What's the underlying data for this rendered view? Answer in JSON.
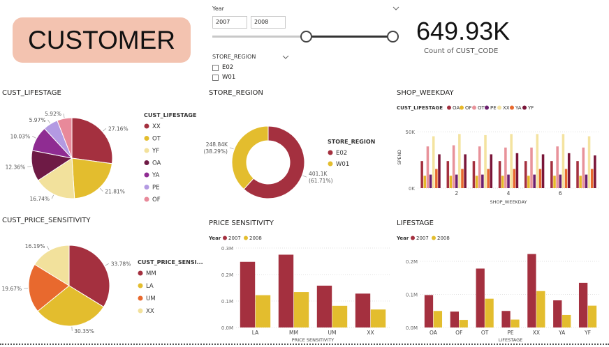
{
  "header": {
    "title": "CUSTOMER"
  },
  "year_slicer": {
    "label": "Year",
    "from": "2007",
    "to": "2008",
    "low": 0,
    "high": 1
  },
  "kpi": {
    "value": "649.93K",
    "label": "Count of CUST_CODE"
  },
  "store_slicer": {
    "label": "STORE_REGION",
    "options": [
      "E02",
      "W01"
    ]
  },
  "colors": {
    "OA": "#a4303f",
    "OF": "#e6b829",
    "OT": "#e8929a",
    "PE": "#6b1f6e",
    "XX": "#f4e3a0",
    "YA": "#e8692e",
    "YF": "#7a1538",
    "y2007": "#a4303f",
    "y2008": "#e3bd2e"
  },
  "chart_data": [
    {
      "id": "cust_lifestage",
      "type": "pie",
      "title": "CUST_LIFESTAGE",
      "legend_title": "CUST_LIFESTAGE",
      "legend": [
        "XX",
        "OT",
        "YF",
        "OA",
        "YA",
        "PE",
        "OF"
      ],
      "slices": [
        {
          "label": "XX",
          "value": 27.16,
          "text": "27.16%",
          "color": "#a4303f"
        },
        {
          "label": "OT",
          "value": 21.81,
          "text": "21.81%",
          "color": "#e3bd2e"
        },
        {
          "label": "YF",
          "value": 16.74,
          "text": "16.74%",
          "color": "#f2e19c"
        },
        {
          "label": "OA",
          "value": 12.36,
          "text": "12.36%",
          "color": "#6e1a45"
        },
        {
          "label": "YA",
          "value": 10.03,
          "text": "10.03%",
          "color": "#8f2c92"
        },
        {
          "label": "PE",
          "value": 5.97,
          "text": "5.97%",
          "color": "#b39ae2"
        },
        {
          "label": "OF",
          "value": 5.92,
          "text": "5.92%",
          "color": "#e8899a"
        }
      ]
    },
    {
      "id": "store_region",
      "type": "pie",
      "donut": true,
      "title": "STORE_REGION",
      "legend_title": "STORE_REGION",
      "legend": [
        "E02",
        "W01"
      ],
      "slices": [
        {
          "label": "E02",
          "value": 401.1,
          "text": "401.1K",
          "pct": "(61.71%)",
          "color": "#a4303f"
        },
        {
          "label": "W01",
          "value": 248.84,
          "text": "248.84K",
          "pct": "(38.29%)",
          "color": "#e3bd2e"
        }
      ]
    },
    {
      "id": "cust_price_sensitivity",
      "type": "pie",
      "title": "CUST_PRICE_SENSITIVITY",
      "legend_title": "CUST_PRICE_SENSI...",
      "legend": [
        "MM",
        "LA",
        "UM",
        "XX"
      ],
      "slices": [
        {
          "label": "MM",
          "value": 33.78,
          "text": "33.78%",
          "color": "#a4303f"
        },
        {
          "label": "LA",
          "value": 30.35,
          "text": "30.35%",
          "color": "#e3bd2e"
        },
        {
          "label": "UM",
          "value": 19.67,
          "text": "19.67%",
          "color": "#e8692e"
        },
        {
          "label": "XX",
          "value": 16.19,
          "text": "16.19%",
          "color": "#f2e19c"
        }
      ]
    },
    {
      "id": "shop_weekday",
      "type": "bar",
      "title": "SHOP_WEEKDAY",
      "legend_title": "CUST_LIFESTAGE",
      "xlabel": "SHOP_WEEKDAY",
      "ylabel": "SPEND",
      "ylim": [
        0,
        55000
      ],
      "yticks": [
        "0K",
        "50K"
      ],
      "categories": [
        "1",
        "2",
        "3",
        "4",
        "5",
        "6",
        "7"
      ],
      "xtick_labels": [
        "",
        "2",
        "",
        "4",
        "",
        "6",
        ""
      ],
      "series": [
        {
          "name": "OA",
          "color": "#a4303f",
          "values": [
            24000,
            24000,
            24000,
            24000,
            24000,
            24000,
            24000
          ]
        },
        {
          "name": "OF",
          "color": "#e6b829",
          "values": [
            11000,
            11000,
            11000,
            11000,
            11000,
            11000,
            11000
          ]
        },
        {
          "name": "OT",
          "color": "#e8929a",
          "values": [
            37000,
            38000,
            37000,
            36000,
            36000,
            37000,
            36000
          ]
        },
        {
          "name": "PE",
          "color": "#6b1f6e",
          "values": [
            12000,
            12000,
            12000,
            12000,
            12000,
            12000,
            12000
          ]
        },
        {
          "name": "XX",
          "color": "#f4e3a0",
          "values": [
            46000,
            48000,
            47000,
            48000,
            48000,
            48000,
            46000
          ]
        },
        {
          "name": "YA",
          "color": "#e8692e",
          "values": [
            17000,
            17000,
            17000,
            17000,
            17000,
            17000,
            17000
          ]
        },
        {
          "name": "YF",
          "color": "#7a1538",
          "values": [
            30000,
            30000,
            30000,
            31000,
            30000,
            31000,
            29000
          ]
        }
      ]
    },
    {
      "id": "price_sensitivity",
      "type": "bar",
      "title": "PRICE SENSITIVITY",
      "legend_title": "Year",
      "xlabel": "PRICE SENSITIVITY",
      "ylim": [
        0,
        300000
      ],
      "yticks": [
        "0.0M",
        "0.1M",
        "0.2M",
        "0.3M"
      ],
      "categories": [
        "LA",
        "MM",
        "UM",
        "XX"
      ],
      "series": [
        {
          "name": "2007",
          "color": "#a4303f",
          "values": [
            248000,
            275000,
            158000,
            128000
          ]
        },
        {
          "name": "2008",
          "color": "#e3bd2e",
          "values": [
            122000,
            134000,
            82000,
            68000
          ]
        }
      ]
    },
    {
      "id": "lifestage",
      "type": "bar",
      "title": "LIFESTAGE",
      "legend_title": "Year",
      "xlabel": "LIFESTAGE",
      "ylim": [
        0,
        240000
      ],
      "yticks": [
        "0.0M",
        "0.1M",
        "0.2M"
      ],
      "categories": [
        "OA",
        "OF",
        "OT",
        "PE",
        "XX",
        "YA",
        "YF"
      ],
      "series": [
        {
          "name": "2007",
          "color": "#a4303f",
          "values": [
            98000,
            48000,
            178000,
            50000,
            222000,
            82000,
            135000
          ]
        },
        {
          "name": "2008",
          "color": "#e3bd2e",
          "values": [
            50000,
            23000,
            87000,
            24000,
            110000,
            38000,
            66000
          ]
        }
      ]
    }
  ]
}
